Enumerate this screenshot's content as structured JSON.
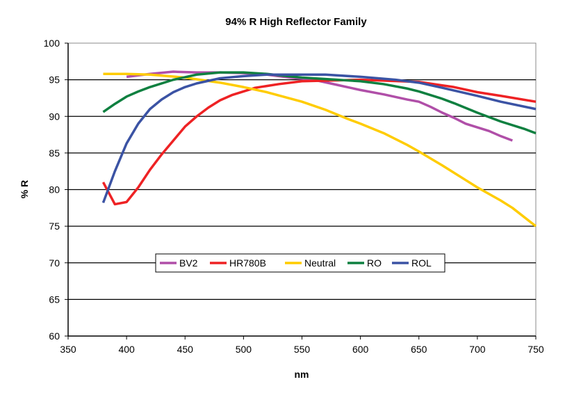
{
  "chart_data": {
    "type": "line",
    "title": "94% R High Reflector Family",
    "xlabel": "nm",
    "ylabel": "% R",
    "xlim": [
      350,
      750
    ],
    "ylim": [
      60,
      100
    ],
    "xticks": [
      350,
      400,
      450,
      500,
      550,
      600,
      650,
      700,
      750
    ],
    "yticks": [
      60,
      65,
      70,
      75,
      80,
      85,
      90,
      95,
      100
    ],
    "grid": "horizontal",
    "legend_placement": "center",
    "series": [
      {
        "name": "BV2",
        "color": "#b04fa8",
        "points": [
          [
            400,
            95.4
          ],
          [
            420,
            95.8
          ],
          [
            440,
            96.1
          ],
          [
            460,
            96.0
          ],
          [
            480,
            96.0
          ],
          [
            500,
            95.9
          ],
          [
            520,
            95.7
          ],
          [
            540,
            95.3
          ],
          [
            560,
            95.0
          ],
          [
            580,
            94.3
          ],
          [
            600,
            93.6
          ],
          [
            620,
            93.0
          ],
          [
            640,
            92.3
          ],
          [
            650,
            92.0
          ],
          [
            660,
            91.3
          ],
          [
            670,
            90.5
          ],
          [
            680,
            89.8
          ],
          [
            690,
            89.0
          ],
          [
            700,
            88.5
          ],
          [
            710,
            88.0
          ],
          [
            720,
            87.3
          ],
          [
            730,
            86.7
          ]
        ]
      },
      {
        "name": "HR780B",
        "color": "#ee2224",
        "points": [
          [
            380,
            81.0
          ],
          [
            390,
            78.0
          ],
          [
            400,
            78.3
          ],
          [
            410,
            80.3
          ],
          [
            420,
            82.7
          ],
          [
            430,
            84.8
          ],
          [
            440,
            86.7
          ],
          [
            450,
            88.6
          ],
          [
            460,
            90.0
          ],
          [
            470,
            91.2
          ],
          [
            480,
            92.2
          ],
          [
            490,
            92.9
          ],
          [
            500,
            93.4
          ],
          [
            510,
            93.9
          ],
          [
            530,
            94.4
          ],
          [
            550,
            94.8
          ],
          [
            600,
            95.0
          ],
          [
            650,
            94.7
          ],
          [
            680,
            94.0
          ],
          [
            700,
            93.3
          ],
          [
            720,
            92.8
          ],
          [
            750,
            92.0
          ]
        ]
      },
      {
        "name": "Neutral",
        "color": "#ffcc00",
        "points": [
          [
            380,
            95.8
          ],
          [
            400,
            95.8
          ],
          [
            420,
            95.7
          ],
          [
            450,
            95.3
          ],
          [
            480,
            94.6
          ],
          [
            500,
            94.0
          ],
          [
            520,
            93.3
          ],
          [
            550,
            92.0
          ],
          [
            570,
            90.9
          ],
          [
            590,
            89.6
          ],
          [
            600,
            89.0
          ],
          [
            620,
            87.7
          ],
          [
            640,
            86.1
          ],
          [
            650,
            85.2
          ],
          [
            670,
            83.3
          ],
          [
            690,
            81.3
          ],
          [
            700,
            80.3
          ],
          [
            720,
            78.5
          ],
          [
            730,
            77.5
          ],
          [
            750,
            75.0
          ]
        ]
      },
      {
        "name": "RO",
        "color": "#0f8040",
        "points": [
          [
            380,
            90.6
          ],
          [
            390,
            91.7
          ],
          [
            400,
            92.7
          ],
          [
            410,
            93.4
          ],
          [
            420,
            94.0
          ],
          [
            440,
            95.0
          ],
          [
            460,
            95.7
          ],
          [
            480,
            96.0
          ],
          [
            500,
            96.0
          ],
          [
            520,
            95.8
          ],
          [
            550,
            95.3
          ],
          [
            580,
            95.0
          ],
          [
            600,
            94.8
          ],
          [
            620,
            94.4
          ],
          [
            640,
            93.8
          ],
          [
            650,
            93.4
          ],
          [
            670,
            92.4
          ],
          [
            680,
            91.8
          ],
          [
            700,
            90.5
          ],
          [
            720,
            89.3
          ],
          [
            740,
            88.3
          ],
          [
            750,
            87.7
          ]
        ]
      },
      {
        "name": "ROL",
        "color": "#3b53a4",
        "points": [
          [
            380,
            78.2
          ],
          [
            390,
            82.5
          ],
          [
            400,
            86.3
          ],
          [
            410,
            89.0
          ],
          [
            420,
            91.0
          ],
          [
            430,
            92.3
          ],
          [
            440,
            93.3
          ],
          [
            450,
            94.0
          ],
          [
            460,
            94.5
          ],
          [
            480,
            95.2
          ],
          [
            500,
            95.5
          ],
          [
            520,
            95.7
          ],
          [
            570,
            95.7
          ],
          [
            600,
            95.4
          ],
          [
            630,
            95.0
          ],
          [
            650,
            94.6
          ],
          [
            670,
            93.9
          ],
          [
            700,
            92.8
          ],
          [
            720,
            92.0
          ],
          [
            750,
            91.0
          ]
        ]
      }
    ]
  }
}
